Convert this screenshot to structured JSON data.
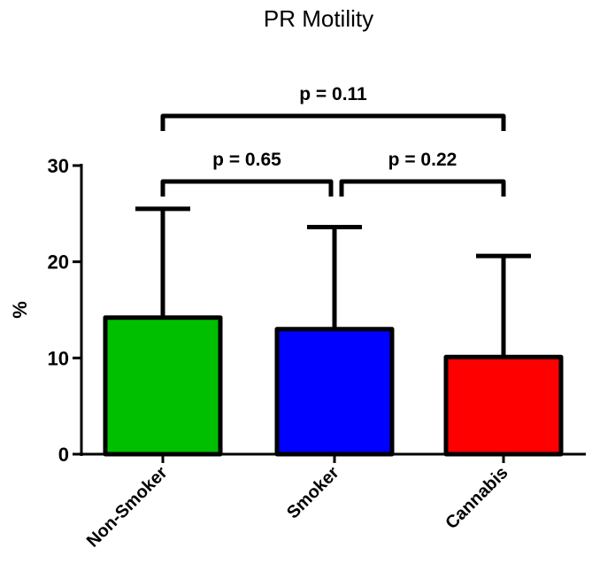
{
  "chart_data": {
    "type": "bar",
    "title": "PR Motility",
    "xlabel": "",
    "ylabel": "%",
    "ylim": [
      0,
      30
    ],
    "yticks": [
      0,
      10,
      20,
      30
    ],
    "grid": false,
    "categories": [
      "Non-Smoker",
      "Smoker",
      "Cannabis"
    ],
    "values": [
      14.2,
      13.0,
      10.1
    ],
    "error_upper": [
      25.5,
      23.6,
      20.6
    ],
    "colors": [
      "#00bf00",
      "#0000ff",
      "#ff0000"
    ],
    "comparisons": [
      {
        "from": 0,
        "to": 1,
        "label": "p = 0.65",
        "level": 1
      },
      {
        "from": 1,
        "to": 2,
        "label": "p = 0.22",
        "level": 1
      },
      {
        "from": 0,
        "to": 2,
        "label": "p = 0.11",
        "level": 2
      }
    ]
  }
}
